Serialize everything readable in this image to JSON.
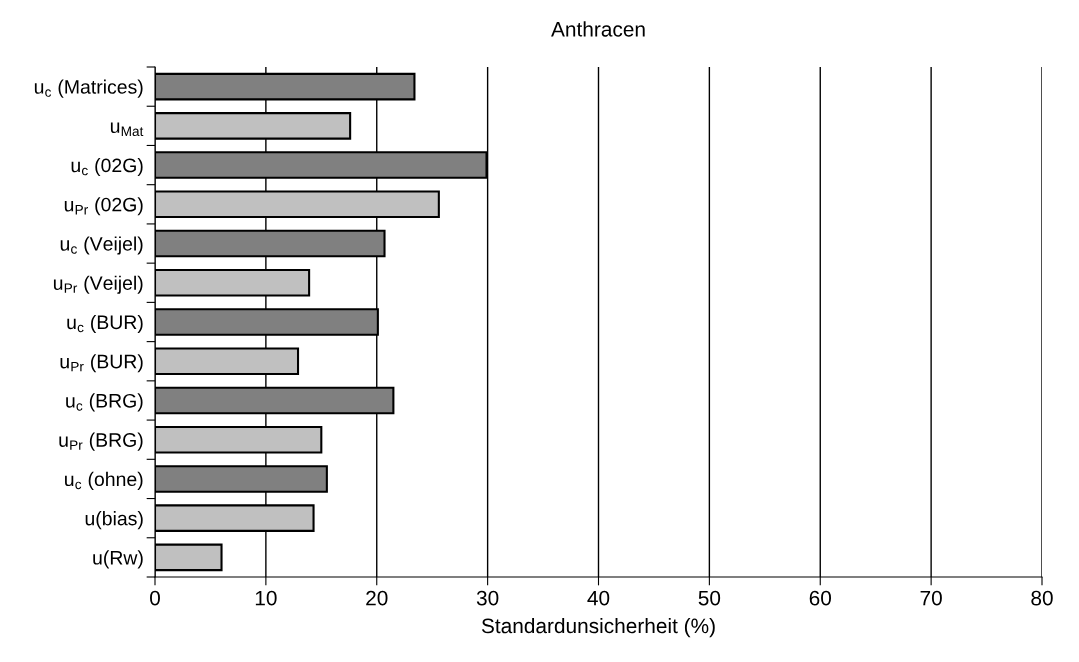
{
  "chart_data": {
    "type": "bar",
    "orientation": "horizontal",
    "title": "Anthracen",
    "xlabel": "Standardunsicherheit (%)",
    "categories": [
      "u$_{c}$ (Matrices)",
      "u$_{Mat}$",
      "u$_{c}$ (02G)",
      "u$_{Pr}$ (02G)",
      "u$_{c}$ (Veijel)",
      "u$_{Pr}$ (Veijel)",
      "u$_{c}$ (BUR)",
      "u$_{Pr}$ (BUR)",
      "u$_{c}$ (BRG)",
      "u$_{Pr}$ (BRG)",
      "u$_{c}$ (ohne)",
      "u(bias)",
      "u(Rw)"
    ],
    "values": [
      23.4,
      17.6,
      29.9,
      25.6,
      20.7,
      13.9,
      20.1,
      12.9,
      21.5,
      15.0,
      15.5,
      14.3,
      6.0
    ],
    "colors": [
      "#808080",
      "#c0c0c0",
      "#808080",
      "#c0c0c0",
      "#808080",
      "#c0c0c0",
      "#808080",
      "#c0c0c0",
      "#808080",
      "#c0c0c0",
      "#808080",
      "#c0c0c0",
      "#c0c0c0"
    ],
    "xlim": [
      0,
      80
    ],
    "xticks": [
      0,
      10,
      20,
      30,
      40,
      50,
      60,
      70,
      80
    ],
    "grid": "x"
  }
}
